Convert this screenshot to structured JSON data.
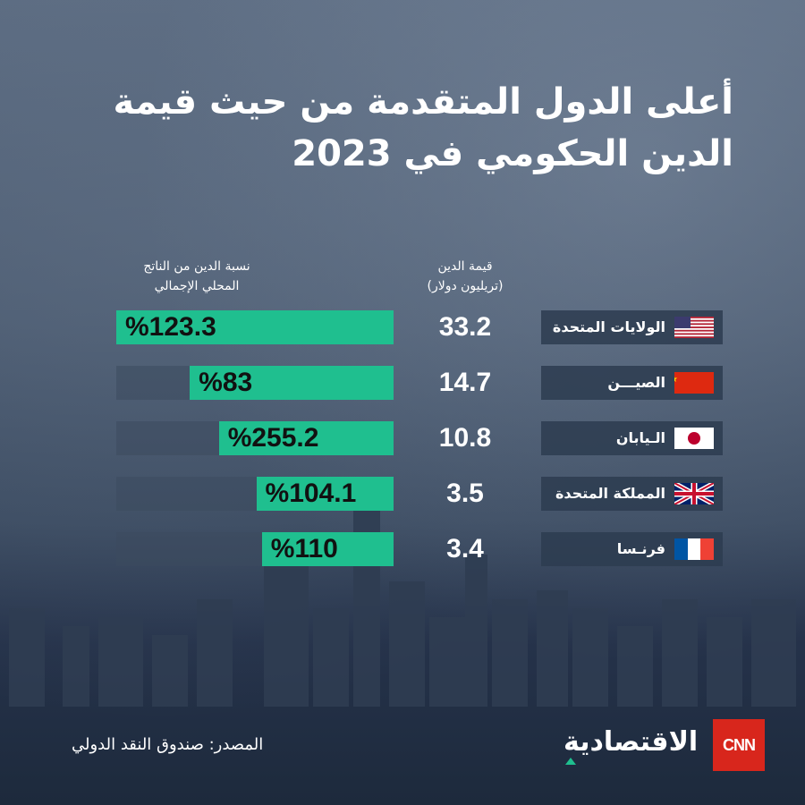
{
  "title_line1": "أعلى الدول المتقدمة من حيث قيمة",
  "title_line2": "الدين الحكومي في 2023",
  "headers": {
    "ratio": [
      "نسبة الدين من الناتج",
      "المحلي الإجمالي"
    ],
    "debt": [
      "قيمة الدين",
      "(تريليون دولار)"
    ]
  },
  "rows": [
    {
      "country": "الولايات المتحدة",
      "flag": "us-flag",
      "debt": "33.2",
      "ratio": "%123.3"
    },
    {
      "country": "الصيـــن",
      "flag": "china-flag",
      "debt": "14.7",
      "ratio": "%83"
    },
    {
      "country": "الـيابان",
      "flag": "japan-flag",
      "debt": "10.8",
      "ratio": "%255.2"
    },
    {
      "country": "المملكة المتحدة",
      "flag": "uk-flag",
      "debt": "3.5",
      "ratio": "%104.1"
    },
    {
      "country": "فرنـسا",
      "flag": "france-flag",
      "debt": "3.4",
      "ratio": "%110"
    }
  ],
  "source": "المصدر: صندوق النقد الدولي",
  "logo": {
    "cnn": "CNN",
    "brand": "الاقتصادية"
  },
  "colors": {
    "bar": "#1fbf8f",
    "cnn": "#d8261c"
  },
  "chart_data": {
    "type": "bar",
    "title": "أعلى الدول المتقدمة من حيث قيمة الدين الحكومي في 2023",
    "categories": [
      "الولايات المتحدة",
      "الصين",
      "اليابان",
      "المملكة المتحدة",
      "فرنسا"
    ],
    "series": [
      {
        "name": "قيمة الدين (تريليون دولار)",
        "values": [
          33.2,
          14.7,
          10.8,
          3.5,
          3.4
        ]
      },
      {
        "name": "نسبة الدين من الناتج المحلي الإجمالي",
        "values": [
          123.3,
          83,
          255.2,
          104.1,
          110
        ]
      }
    ],
    "bar_fraction": [
      1.0,
      0.735,
      0.63,
      0.495,
      0.475
    ]
  }
}
